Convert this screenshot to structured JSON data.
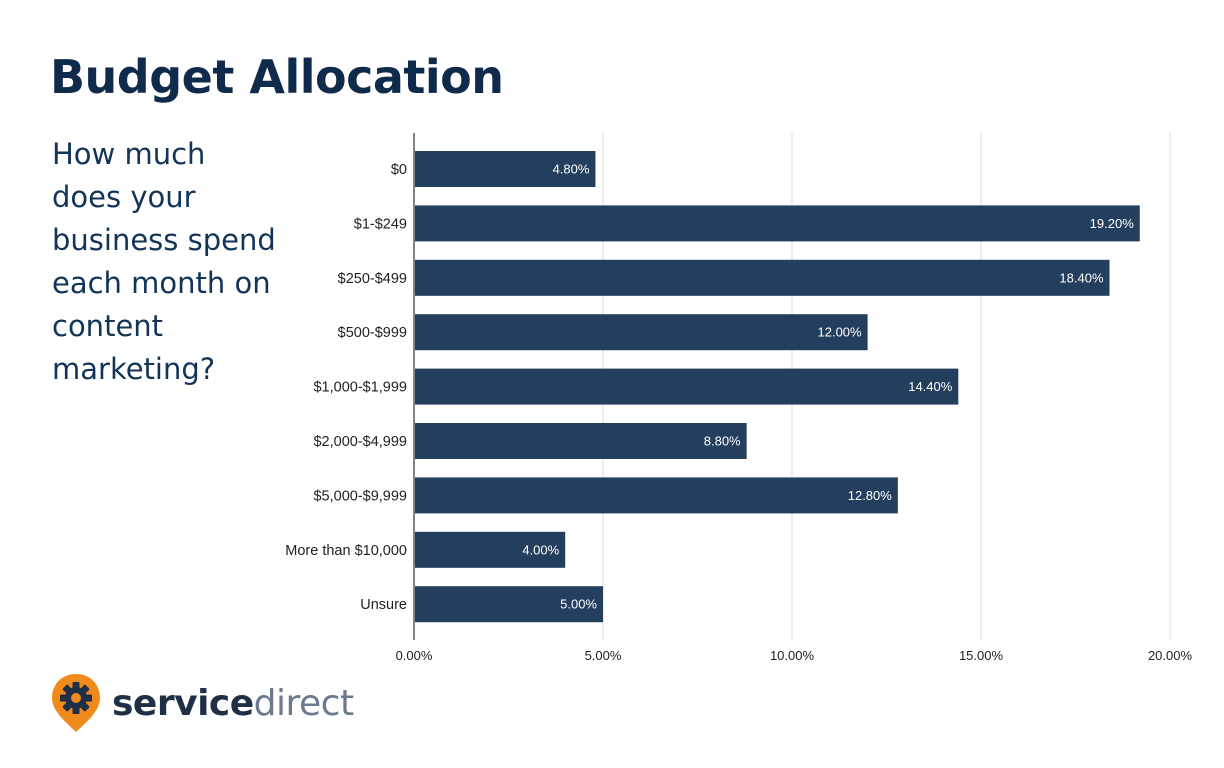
{
  "header": {
    "title": "Budget Allocation"
  },
  "question": {
    "lines": [
      "How much",
      "does your",
      "business spend",
      "each month on",
      "content",
      "marketing?"
    ]
  },
  "brand": {
    "part1": "service",
    "part2": "direct",
    "pin_color": "#f08a1c",
    "icon": "gear-pin-icon"
  },
  "chart_data": {
    "type": "bar",
    "orientation": "horizontal",
    "categories": [
      "$0",
      "$1-$249",
      "$250-$499",
      "$500-$999",
      "$1,000-$1,999",
      "$2,000-$4,999",
      "$5,000-$9,999",
      "More than $10,000",
      "Unsure"
    ],
    "values": [
      4.8,
      19.2,
      18.4,
      12.0,
      14.4,
      8.8,
      12.8,
      4.0,
      5.0
    ],
    "value_labels": [
      "4.80%",
      "19.20%",
      "18.40%",
      "12.00%",
      "14.40%",
      "8.80%",
      "12.80%",
      "4.00%",
      "5.00%"
    ],
    "x_ticks": [
      0,
      5,
      10,
      15,
      20
    ],
    "x_tick_labels": [
      "0.00%",
      "5.00%",
      "10.00%",
      "15.00%",
      "20.00%"
    ],
    "xlim": [
      0,
      20
    ],
    "bar_color": "#243f5e",
    "grid": true
  }
}
